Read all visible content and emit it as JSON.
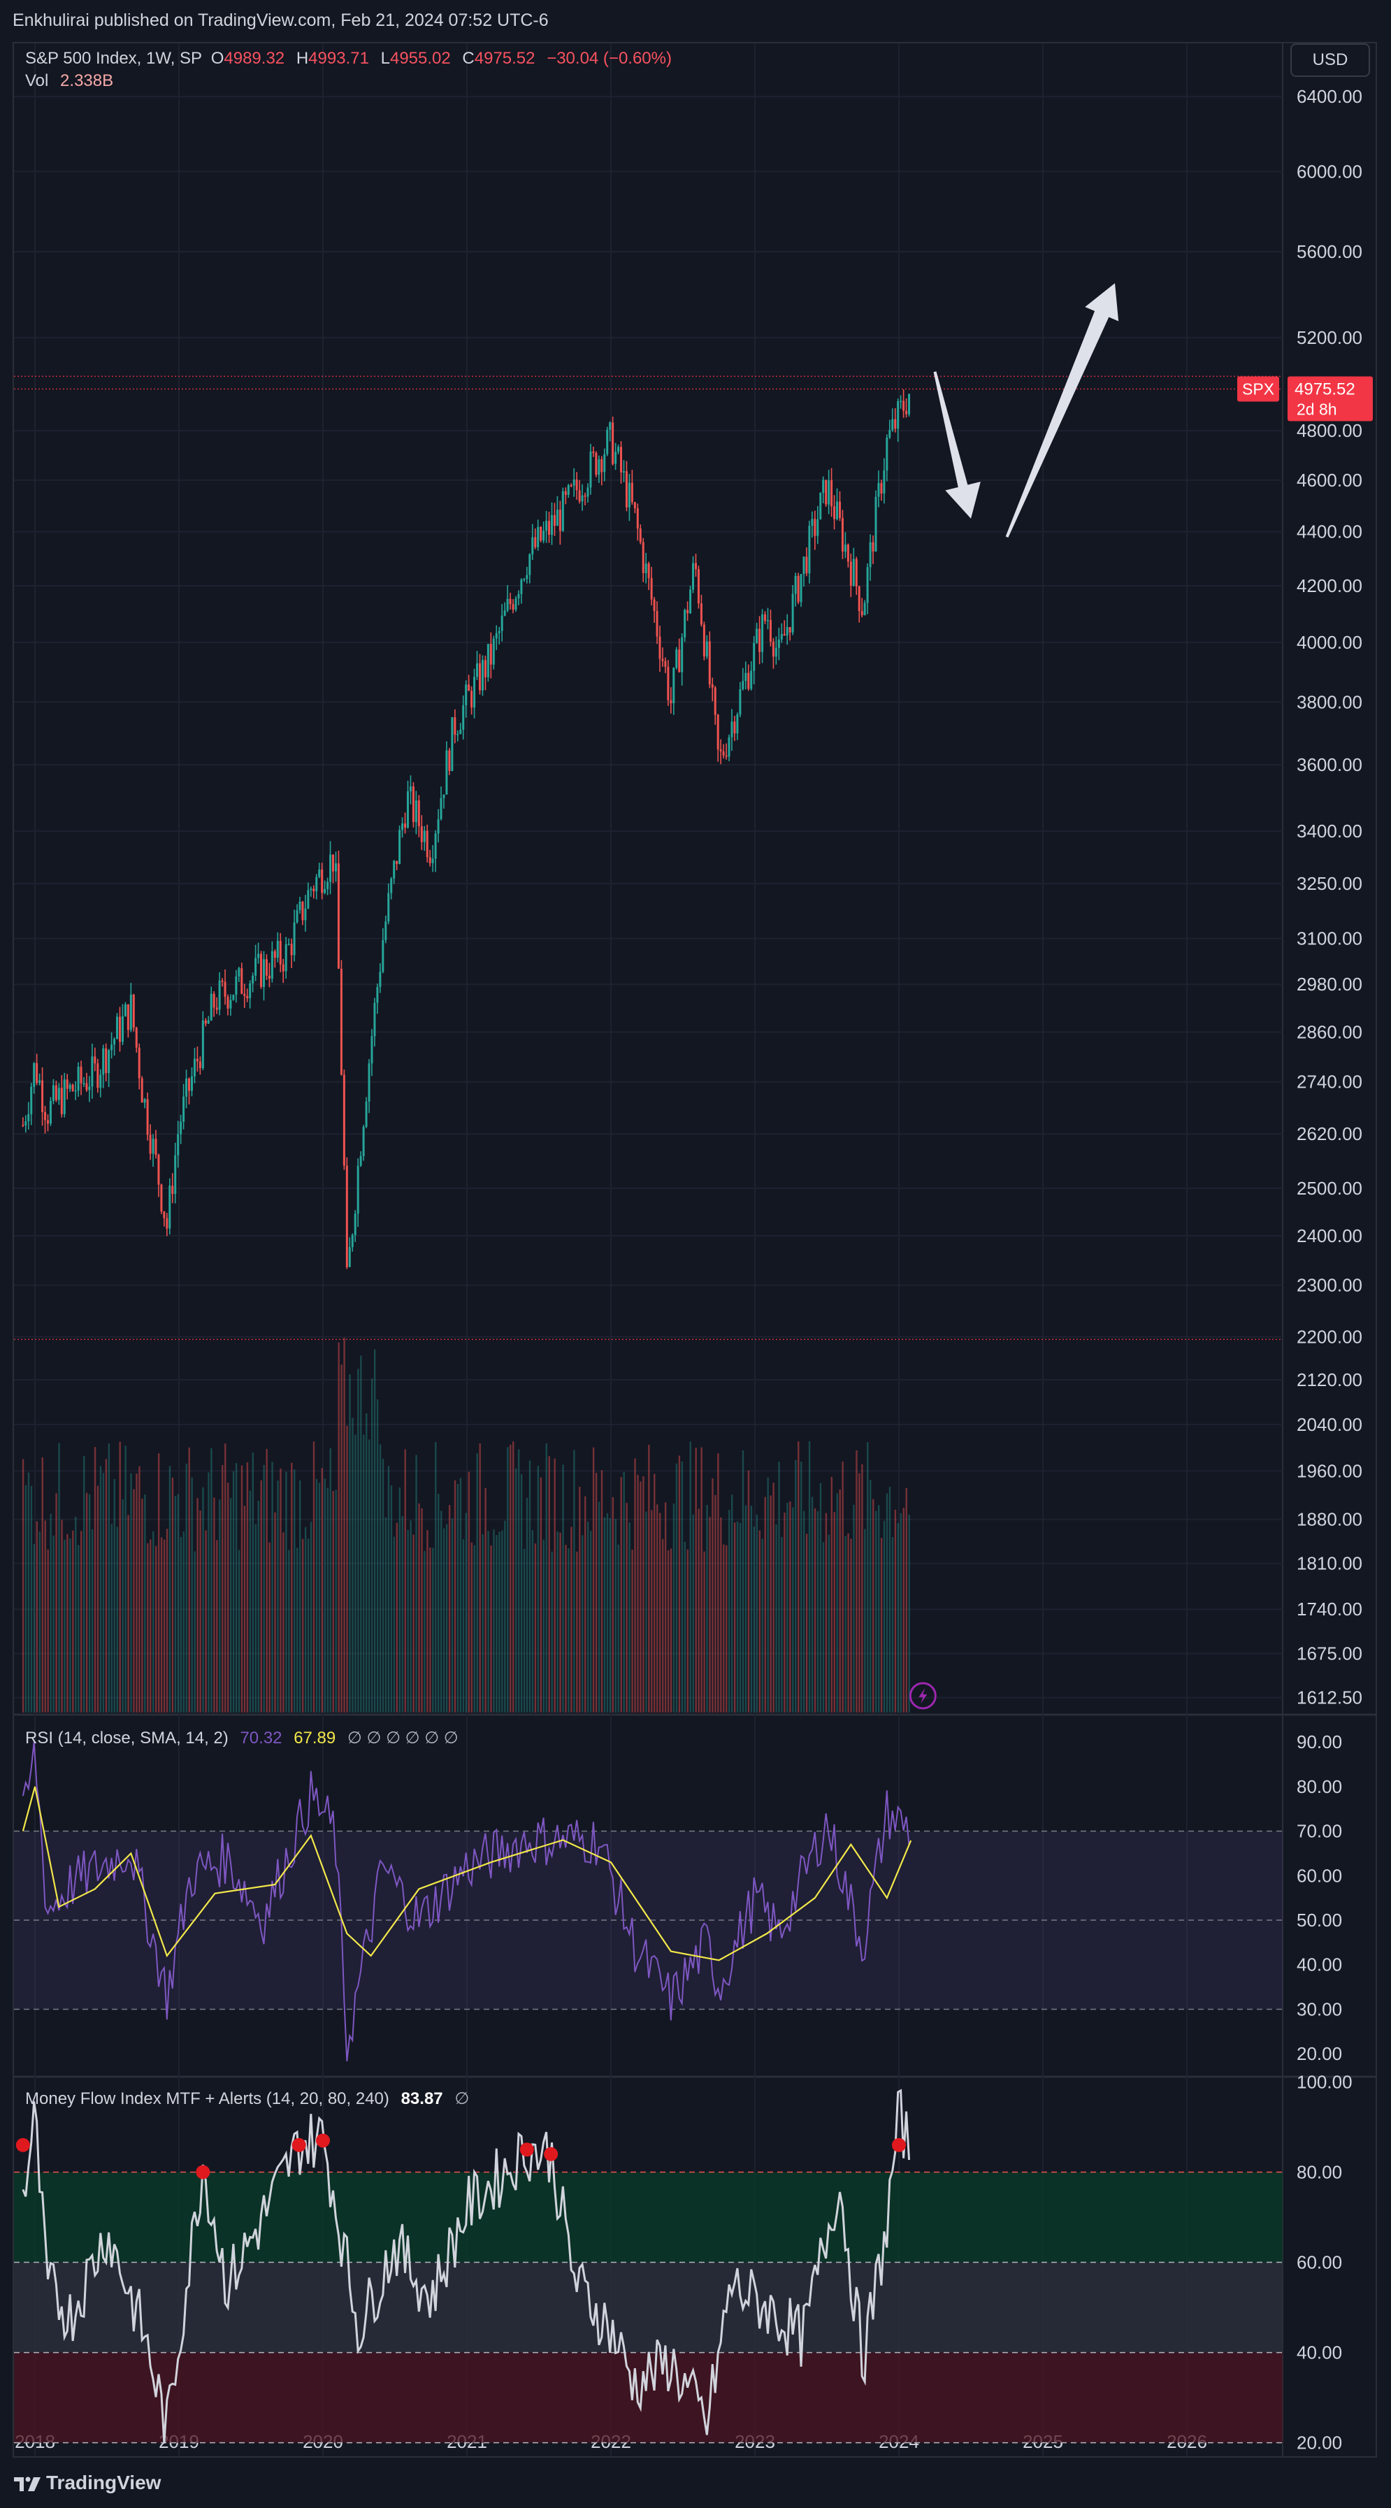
{
  "header": {
    "published": "Enkhulirai published on TradingView.com, Feb 21, 2024 07:52 UTC-6",
    "currency_button": "USD"
  },
  "main_legend": {
    "symbol": "S&P 500 Index, 1W, SP",
    "open_label": "O",
    "open": "4989.32",
    "high_label": "H",
    "high": "4993.71",
    "low_label": "L",
    "low": "4955.02",
    "close_label": "C",
    "close": "4975.52",
    "change": "−30.04 (−0.60%)",
    "vol_label": "Vol",
    "vol": "2.338B"
  },
  "price_tag": {
    "symbol": "SPX",
    "price": "4975.52",
    "countdown": "2d 8h"
  },
  "rsi_legend": {
    "title": "RSI (14, close, SMA, 14, 2)",
    "rsi": "70.32",
    "sma": "67.89",
    "hidden": "∅ ∅ ∅ ∅ ∅ ∅"
  },
  "mfi_legend": {
    "title": "Money Flow Index MTF + Alerts (14, 20, 80, 240)",
    "value": "83.87",
    "hidden": "∅"
  },
  "footer": {
    "brand": "TradingView"
  },
  "colors": {
    "background": "#131722",
    "up": "#26a69a",
    "down": "#ef5350",
    "rsi_line": "#7e57c2",
    "rsi_sma": "#f2e84a",
    "mfi_line": "#d1d4dc",
    "alert_dot": "#e0191e",
    "arrow": "#dfe1ea",
    "price_tag": "#f23645"
  },
  "chart_data": [
    {
      "type": "candlestick",
      "title": "S&P 500 Index, 1W, SP",
      "scale": "log",
      "x_axis": {
        "tick_labels": [
          "2018",
          "2019",
          "2020",
          "2021",
          "2022",
          "2023",
          "2024",
          "2025",
          "2026"
        ]
      },
      "y_axis": {
        "tick_labels": [
          "6400.00",
          "6000.00",
          "5600.00",
          "5200.00",
          "4800.00",
          "4600.00",
          "4400.00",
          "4200.00",
          "4000.00",
          "3800.00",
          "3600.00",
          "3400.00",
          "3250.00",
          "3100.00",
          "2980.00",
          "2860.00",
          "2740.00",
          "2620.00",
          "2500.00",
          "2400.00",
          "2300.00",
          "2200.00",
          "2120.00",
          "2040.00",
          "1960.00",
          "1880.00",
          "1810.00",
          "1740.00",
          "1675.00",
          "1612.50"
        ],
        "range": [
          1590,
          6700
        ]
      },
      "series": [
        {
          "name": "S&P 500 Index",
          "x": [
            "2017-12",
            "2018-01",
            "2018-02",
            "2018-03",
            "2018-06",
            "2018-09",
            "2018-10",
            "2018-12",
            "2019-01",
            "2019-04",
            "2019-07",
            "2019-10",
            "2019-12",
            "2020-02",
            "2020-03",
            "2020-06",
            "2020-08",
            "2020-10",
            "2020-12",
            "2021-03",
            "2021-06",
            "2021-09",
            "2021-12",
            "2022-01",
            "2022-03",
            "2022-06",
            "2022-08",
            "2022-10",
            "2022-12",
            "2023-02",
            "2023-03",
            "2023-07",
            "2023-10",
            "2023-12",
            "2024-02"
          ],
          "values": [
            2640,
            2780,
            2670,
            2700,
            2760,
            2920,
            2710,
            2420,
            2640,
            2940,
            3000,
            3060,
            3240,
            3330,
            2300,
            3100,
            3500,
            3350,
            3730,
            3950,
            4300,
            4480,
            4700,
            4760,
            4450,
            3800,
            4280,
            3600,
            3850,
            4100,
            3950,
            4580,
            4120,
            4750,
            4975
          ]
        },
        {
          "name": "Volume",
          "note": "bars, no numeric axis"
        }
      ],
      "annotations": [
        {
          "type": "arrow",
          "description": "down arrow",
          "from_date": "2024-04",
          "from_value": 5050,
          "to_date": "2024-07",
          "to_value": 4450
        },
        {
          "type": "arrow",
          "description": "up arrow",
          "from_date": "2024-10",
          "from_value": 4380,
          "to_date": "2025-07",
          "to_value": 5450
        },
        {
          "type": "hline",
          "value": 5030
        },
        {
          "type": "hline",
          "value": 4975.52
        },
        {
          "type": "hline",
          "value": 2195
        }
      ]
    },
    {
      "type": "line",
      "title": "RSI (14, close, SMA, 14, 2)",
      "y_axis": {
        "tick_labels": [
          "90.00",
          "80.00",
          "70.00",
          "60.00",
          "50.00",
          "40.00",
          "30.00",
          "20.00"
        ],
        "range": [
          15,
          96
        ]
      },
      "bands": [
        30,
        50,
        70
      ],
      "series": [
        {
          "name": "RSI",
          "x": [
            "2017-12",
            "2018-01",
            "2018-02",
            "2018-04",
            "2018-09",
            "2018-12",
            "2019-02",
            "2019-05",
            "2019-08",
            "2019-12",
            "2020-02",
            "2020-03",
            "2020-06",
            "2020-09",
            "2021-01",
            "2021-06",
            "2021-12",
            "2022-03",
            "2022-06",
            "2022-09",
            "2022-10",
            "2023-01",
            "2023-03",
            "2023-07",
            "2023-10",
            "2023-12",
            "2024-02"
          ],
          "values": [
            72,
            88,
            52,
            58,
            66,
            33,
            60,
            64,
            50,
            78,
            70,
            22,
            62,
            50,
            62,
            68,
            68,
            44,
            32,
            45,
            35,
            55,
            47,
            72,
            44,
            74,
            70.32
          ]
        },
        {
          "name": "SMA",
          "x": [
            "2017-12",
            "2018-01",
            "2018-03",
            "2018-06",
            "2018-09",
            "2018-12",
            "2019-04",
            "2019-09",
            "2019-12",
            "2020-03",
            "2020-05",
            "2020-09",
            "2021-03",
            "2021-09",
            "2022-01",
            "2022-06",
            "2022-10",
            "2023-02",
            "2023-06",
            "2023-09",
            "2023-12",
            "2024-02"
          ],
          "values": [
            70,
            80,
            53,
            57,
            65,
            42,
            56,
            58,
            69,
            47,
            42,
            57,
            63,
            68,
            63,
            43,
            41,
            47,
            55,
            67,
            55,
            67.89
          ]
        }
      ]
    },
    {
      "type": "line",
      "title": "Money Flow Index MTF + Alerts (14, 20, 80, 240)",
      "y_axis": {
        "tick_labels": [
          "100.00",
          "80.00",
          "60.00",
          "40.00",
          "20.00"
        ],
        "range": [
          17,
          101
        ]
      },
      "bands": [
        20,
        40,
        60,
        80
      ],
      "series": [
        {
          "name": "MFI",
          "x": [
            "2017-12",
            "2018-01",
            "2018-02",
            "2018-04",
            "2018-07",
            "2018-10",
            "2018-12",
            "2019-03",
            "2019-05",
            "2019-08",
            "2019-11",
            "2020-01",
            "2020-04",
            "2020-07",
            "2020-10",
            "2021-01",
            "2021-06",
            "2021-08",
            "2021-10",
            "2022-01",
            "2022-03",
            "2022-06",
            "2022-09",
            "2022-11",
            "2023-02",
            "2023-05",
            "2023-08",
            "2023-10",
            "2023-12",
            "2024-01",
            "2024-02"
          ],
          "values": [
            74,
            92,
            55,
            48,
            67,
            45,
            23,
            82,
            55,
            70,
            86,
            88,
            45,
            64,
            52,
            72,
            85,
            84,
            56,
            45,
            33,
            38,
            24,
            55,
            50,
            43,
            78,
            38,
            68,
            93,
            83.87
          ]
        }
      ],
      "alerts": [
        {
          "x": "2017-12",
          "value": 86
        },
        {
          "x": "2019-03",
          "value": 80
        },
        {
          "x": "2019-11",
          "value": 86
        },
        {
          "x": "2020-01",
          "value": 87
        },
        {
          "x": "2021-06",
          "value": 85
        },
        {
          "x": "2021-08",
          "value": 84
        },
        {
          "x": "2024-01",
          "value": 86
        }
      ]
    }
  ]
}
